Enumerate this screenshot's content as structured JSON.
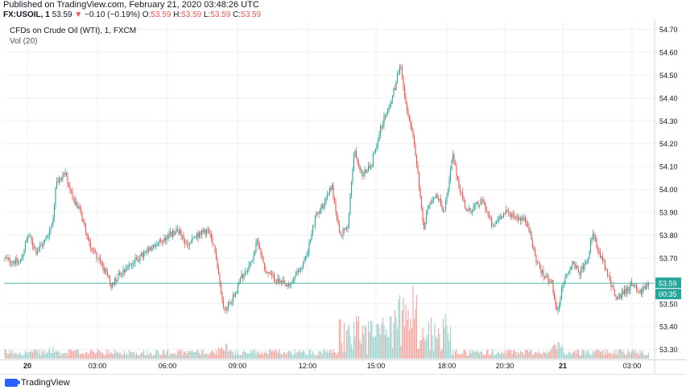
{
  "header": {
    "published": "Published on TradingView.com, February 21, 2020 03:48:26 UTC",
    "symbol": "FX:USOIL, 1",
    "last": "53.59",
    "arrow": "▼",
    "change": "−0.10 (−0.19%)",
    "o_label": "O:",
    "o_val": "53.59",
    "h_label": "H:",
    "h_val": "53.59",
    "l_label": "L:",
    "l_val": "53.59",
    "c_label": "C:",
    "c_val": "53.59"
  },
  "legend": {
    "title": "CFDs on Crude Oil (WTI), 1, FXCM",
    "vol": "Vol (20)"
  },
  "colors": {
    "up": "#26a69a",
    "down": "#ef5350",
    "vol_up": "#9fd7d0",
    "vol_down": "#f3aaa7",
    "price_line": "#26a69a",
    "price_badge": "#26a69a",
    "grid": "#eef0f3",
    "axis_text": "#131722"
  },
  "footer": {
    "brand": "TradingView",
    "logo_icon": "tradingview-logo-icon"
  },
  "chart_data": {
    "type": "candlestick",
    "title": "CFDs on Crude Oil (WTI), 1, FXCM",
    "y_ticks": [
      "54.70",
      "54.60",
      "54.50",
      "54.40",
      "54.30",
      "54.20",
      "54.10",
      "54.00",
      "53.90",
      "53.80",
      "53.70",
      "53.50",
      "53.40",
      "53.30"
    ],
    "ylim": [
      53.26,
      54.73
    ],
    "x_ticks": [
      "20",
      "03:00",
      "06:00",
      "09:00",
      "12:00",
      "15:00",
      "18:00",
      "20:30",
      "21",
      "03:00"
    ],
    "last_price": 53.59,
    "countdown": "00:35",
    "price_path": [
      [
        0,
        53.7
      ],
      [
        25,
        53.68
      ],
      [
        35,
        53.8
      ],
      [
        45,
        53.73
      ],
      [
        55,
        53.77
      ],
      [
        65,
        53.85
      ],
      [
        70,
        54.03
      ],
      [
        80,
        54.07
      ],
      [
        90,
        53.97
      ],
      [
        100,
        53.9
      ],
      [
        110,
        53.77
      ],
      [
        125,
        53.68
      ],
      [
        138,
        53.58
      ],
      [
        150,
        53.64
      ],
      [
        165,
        53.68
      ],
      [
        180,
        53.72
      ],
      [
        195,
        53.76
      ],
      [
        210,
        53.8
      ],
      [
        222,
        53.82
      ],
      [
        232,
        53.75
      ],
      [
        245,
        53.8
      ],
      [
        258,
        53.82
      ],
      [
        268,
        53.72
      ],
      [
        278,
        53.47
      ],
      [
        288,
        53.52
      ],
      [
        300,
        53.62
      ],
      [
        312,
        53.68
      ],
      [
        320,
        53.78
      ],
      [
        330,
        53.64
      ],
      [
        345,
        53.6
      ],
      [
        358,
        53.57
      ],
      [
        372,
        53.65
      ],
      [
        380,
        53.7
      ],
      [
        392,
        53.88
      ],
      [
        402,
        53.94
      ],
      [
        412,
        54.02
      ],
      [
        422,
        53.79
      ],
      [
        432,
        53.85
      ],
      [
        440,
        54.17
      ],
      [
        450,
        54.06
      ],
      [
        462,
        54.12
      ],
      [
        472,
        54.26
      ],
      [
        482,
        54.36
      ],
      [
        490,
        54.44
      ],
      [
        497,
        54.55
      ],
      [
        503,
        54.4
      ],
      [
        512,
        54.25
      ],
      [
        518,
        54.1
      ],
      [
        526,
        53.82
      ],
      [
        532,
        53.94
      ],
      [
        542,
        53.98
      ],
      [
        552,
        53.9
      ],
      [
        562,
        54.15
      ],
      [
        570,
        54.02
      ],
      [
        580,
        53.9
      ],
      [
        592,
        53.93
      ],
      [
        600,
        53.95
      ],
      [
        612,
        53.83
      ],
      [
        620,
        53.88
      ],
      [
        630,
        53.9
      ],
      [
        642,
        53.88
      ],
      [
        655,
        53.86
      ],
      [
        665,
        53.7
      ],
      [
        675,
        53.62
      ],
      [
        685,
        53.6
      ],
      [
        692,
        53.45
      ],
      [
        700,
        53.6
      ],
      [
        710,
        53.68
      ],
      [
        720,
        53.63
      ],
      [
        730,
        53.7
      ],
      [
        736,
        53.82
      ],
      [
        745,
        53.71
      ],
      [
        755,
        53.63
      ],
      [
        765,
        53.52
      ],
      [
        775,
        53.55
      ],
      [
        785,
        53.59
      ],
      [
        795,
        53.55
      ],
      [
        805,
        53.59
      ]
    ]
  }
}
